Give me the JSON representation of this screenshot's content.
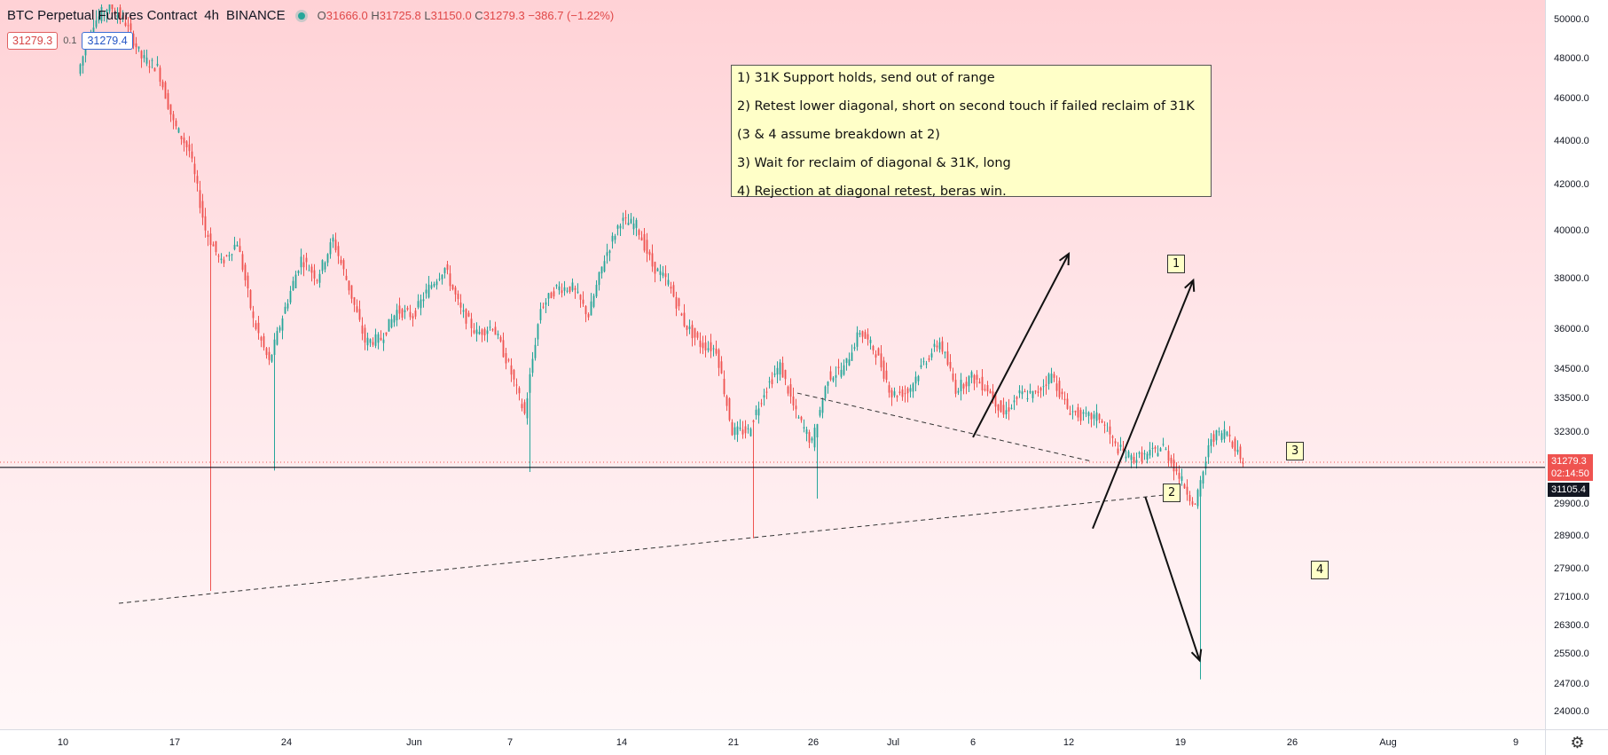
{
  "header": {
    "symbol": "BTC Perpetual Futures Contract",
    "interval": "4h",
    "exchange": "BINANCE",
    "o": "31666.0",
    "h": "31725.8",
    "l": "31150.0",
    "c": "31279.3",
    "change": "−386.7 (−1.22%)"
  },
  "chips": {
    "bid": "31279.3",
    "spread": "0.1",
    "ask": "31279.4"
  },
  "notes": [
    "1) 31K Support holds, send out of range",
    "2) Retest lower diagonal, short on second touch if failed reclaim of 31K",
    "(3 & 4 assume breakdown at 2)",
    "3) Wait for reclaim of diagonal & 31K, long",
    "4) Rejection at diagonal retest, beras win."
  ],
  "scenario_labels": [
    "1",
    "2",
    "3",
    "4"
  ],
  "price_tags": {
    "last": "31279.3",
    "countdown": "02:14:50",
    "line": "31105.4"
  },
  "colors": {
    "up": "#26a69a",
    "down": "#ef5350",
    "tag_red": "#ef5350",
    "tag_black": "#131722"
  },
  "chart_data": {
    "type": "candlestick",
    "symbol": "BTC Perpetual Futures Contract",
    "interval": "4h",
    "price_ticks": [
      "50000.0",
      "48000.0",
      "46000.0",
      "44000.0",
      "42000.0",
      "40000.0",
      "38000.0",
      "36000.0",
      "34500.0",
      "33500.0",
      "32300.0",
      "29900.0",
      "28900.0",
      "27900.0",
      "27100.0",
      "26300.0",
      "25500.0",
      "24700.0",
      "24000.0"
    ],
    "time_ticks": [
      "10",
      "17",
      "24",
      "Jun",
      "7",
      "14",
      "21",
      "26",
      "Jul",
      "6",
      "12",
      "19",
      "26",
      "Aug",
      "9"
    ],
    "last_price": 31279.3,
    "horizontal_line": 31105.4,
    "close_path": [
      [
        "May 11",
        47200
      ],
      [
        "May 12",
        49800
      ],
      [
        "May 13",
        50600
      ],
      [
        "May 14",
        49800
      ],
      [
        "May 15",
        48000
      ],
      [
        "May 16",
        47500
      ],
      [
        "May 17",
        44800
      ],
      [
        "May 18",
        43500
      ],
      [
        "May 19",
        40000
      ],
      [
        "May 20",
        38600
      ],
      [
        "May 21",
        39500
      ],
      [
        "May 22",
        36300
      ],
      [
        "May 23",
        34700
      ],
      [
        "May 24",
        36800
      ],
      [
        "May 25",
        38800
      ],
      [
        "May 26",
        38000
      ],
      [
        "May 27",
        39600
      ],
      [
        "May 28",
        37600
      ],
      [
        "May 29",
        35500
      ],
      [
        "May 30",
        35600
      ],
      [
        "May 31",
        36700
      ],
      [
        "Jun 1",
        36500
      ],
      [
        "Jun 2",
        37600
      ],
      [
        "Jun 3",
        38400
      ],
      [
        "Jun 4",
        36700
      ],
      [
        "Jun 5",
        35800
      ],
      [
        "Jun 6",
        36100
      ],
      [
        "Jun 7",
        34600
      ],
      [
        "Jun 8",
        32900
      ],
      [
        "Jun 9",
        36800
      ],
      [
        "Jun 10",
        37600
      ],
      [
        "Jun 11",
        37600
      ],
      [
        "Jun 12",
        36500
      ],
      [
        "Jun 13",
        38800
      ],
      [
        "Jun 14",
        40400
      ],
      [
        "Jun 15",
        40200
      ],
      [
        "Jun 16",
        38500
      ],
      [
        "Jun 17",
        37800
      ],
      [
        "Jun 18",
        36200
      ],
      [
        "Jun 19",
        35400
      ],
      [
        "Jun 20",
        35200
      ],
      [
        "Jun 21",
        32300
      ],
      [
        "Jun 22",
        32300
      ],
      [
        "Jun 23",
        33700
      ],
      [
        "Jun 24",
        34600
      ],
      [
        "Jun 25",
        32900
      ],
      [
        "Jun 26",
        31900
      ],
      [
        "Jun 27",
        34200
      ],
      [
        "Jun 28",
        34500
      ],
      [
        "Jun 29",
        35900
      ],
      [
        "Jun 30",
        35100
      ],
      [
        "Jul 1",
        33600
      ],
      [
        "Jul 2",
        33700
      ],
      [
        "Jul 3",
        34700
      ],
      [
        "Jul 4",
        35500
      ],
      [
        "Jul 5",
        33800
      ],
      [
        "Jul 6",
        34200
      ],
      [
        "Jul 7",
        33800
      ],
      [
        "Jul 8",
        32900
      ],
      [
        "Jul 9",
        33600
      ],
      [
        "Jul 10",
        33600
      ],
      [
        "Jul 11",
        34300
      ],
      [
        "Jul 12",
        33100
      ],
      [
        "Jul 13",
        32800
      ],
      [
        "Jul 14",
        32800
      ],
      [
        "Jul 15",
        31800
      ],
      [
        "Jul 16",
        31400
      ],
      [
        "Jul 17",
        31500
      ],
      [
        "Jul 18",
        31800
      ],
      [
        "Jul 19",
        30800
      ],
      [
        "Jul 20",
        29800
      ],
      [
        "Jul 21",
        32100
      ],
      [
        "Jul 22",
        32300
      ],
      [
        "Jul 23",
        31279.3
      ]
    ]
  }
}
